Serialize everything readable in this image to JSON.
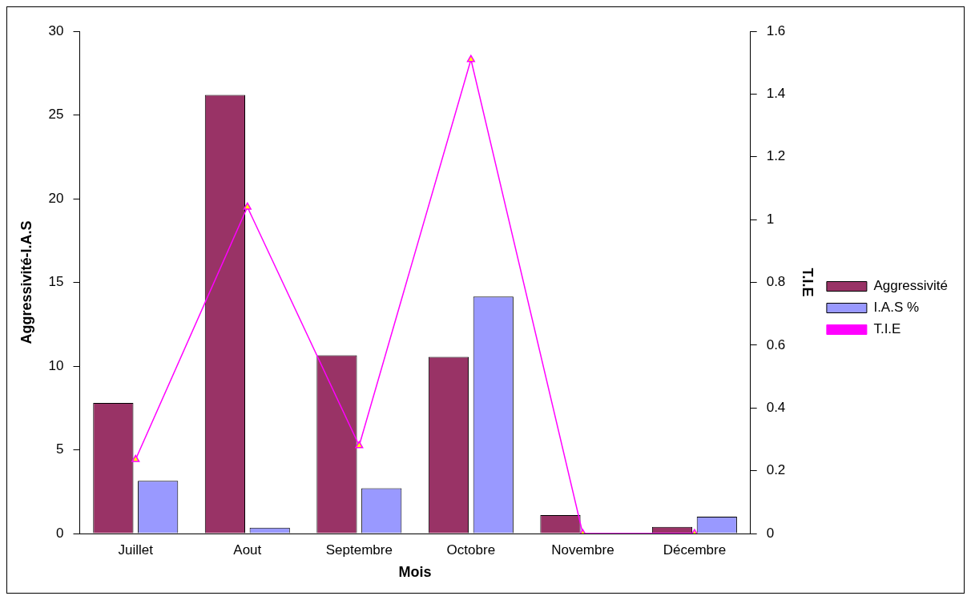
{
  "chart_data": {
    "type": "bar",
    "xlabel": "Mois",
    "ylabel": "Aggressivité-I.A.S",
    "y2label": "T.I.E",
    "categories": [
      "Juillet",
      "Aout",
      "Septembre",
      "Octobre",
      "Novembre",
      "Décembre"
    ],
    "series": [
      {
        "name": "Aggressivité",
        "color": "#993366",
        "values": [
          7.8,
          26.2,
          10.65,
          10.55,
          1.1,
          0.4
        ]
      },
      {
        "name": "I.A.S %",
        "color": "#9999ff",
        "values": [
          3.15,
          0.35,
          2.7,
          14.15,
          0,
          1.0
        ]
      },
      {
        "name": "T.I.E",
        "type": "line",
        "axis": "y2",
        "color": "#ff00ff",
        "marker": "triangle",
        "values": [
          0.236,
          1.04,
          0.28,
          1.51,
          0,
          0
        ]
      }
    ],
    "ylim": [
      0,
      30
    ],
    "yticks": [
      0,
      5,
      10,
      15,
      20,
      25,
      30
    ],
    "y2lim": [
      0,
      1.6
    ],
    "y2ticks": [
      0,
      0.2,
      0.4,
      0.6,
      0.8,
      1,
      1.2,
      1.4,
      1.6
    ],
    "grid": false,
    "legend": "right"
  }
}
